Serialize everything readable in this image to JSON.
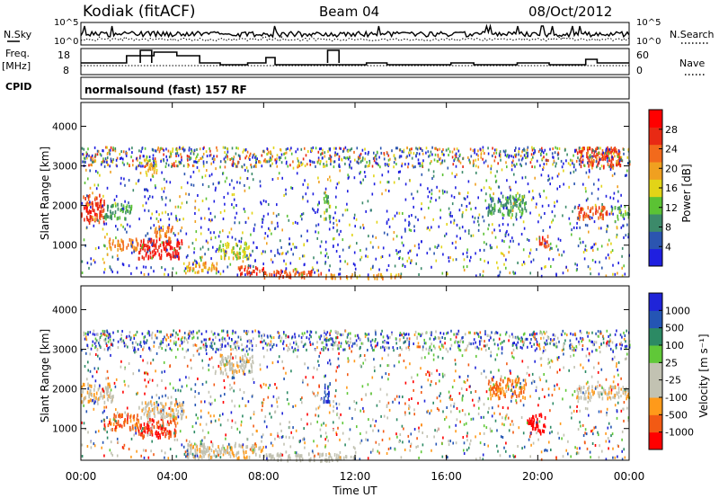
{
  "header": {
    "station": "Kodiak (fitACF)",
    "beam": "Beam 04",
    "date": "08/Oct/2012"
  },
  "sidepanel": {
    "nsky": "N.Sky",
    "freq_line1": "Freq.",
    "freq_line2": "[MHz]",
    "cpid": "CPID",
    "cpid_value": "normalsound (fast) 157 RF",
    "nsearch": "N.Search",
    "nave": "Nave",
    "noise_ticks": [
      "10^5",
      "10^0"
    ],
    "freq_ticks": [
      "18",
      "8"
    ],
    "nave_ticks": [
      "60",
      "0"
    ]
  },
  "colors": {
    "power": [
      "#1f1fe0",
      "#2b55b0",
      "#3c8a6a",
      "#5bc234",
      "#e2d417",
      "#f0a020",
      "#f26a1c",
      "#e82a14",
      "#ff0000"
    ],
    "velocity": [
      "#ff0000",
      "#f25a14",
      "#ff9a1a",
      "#c2c2b2",
      "#c2c2b2",
      "#60c838",
      "#2c8a64",
      "#2455b4",
      "#1f24d8"
    ]
  },
  "chart_data": [
    {
      "type": "heatmap",
      "name": "power",
      "ylabel": "Slant Range [km]",
      "yticks": [
        "4000",
        "3000",
        "2000",
        "1000"
      ],
      "ylim": [
        200,
        4600
      ],
      "xlim": [
        0,
        24
      ],
      "colorbar": {
        "label": "Power [dB]",
        "ticks": [
          "28",
          "24",
          "20",
          "16",
          "12",
          "8",
          "4"
        ],
        "range": [
          0,
          32
        ]
      },
      "regions": [
        {
          "t": [
            0.0,
            1.0
          ],
          "r": [
            1600,
            2300
          ],
          "level": 26
        },
        {
          "t": [
            1.0,
            2.2
          ],
          "r": [
            1700,
            2100
          ],
          "level": 10
        },
        {
          "t": [
            1.2,
            2.5
          ],
          "r": [
            900,
            1200
          ],
          "level": 22
        },
        {
          "t": [
            2.5,
            4.4
          ],
          "r": [
            700,
            1200
          ],
          "level": 28
        },
        {
          "t": [
            3.2,
            4.0
          ],
          "r": [
            1200,
            1500
          ],
          "level": 22
        },
        {
          "t": [
            2.8,
            3.3
          ],
          "r": [
            2800,
            3200
          ],
          "level": 18
        },
        {
          "t": [
            4.6,
            6.0
          ],
          "r": [
            350,
            600
          ],
          "level": 20
        },
        {
          "t": [
            6.0,
            7.4
          ],
          "r": [
            700,
            1100
          ],
          "level": 16
        },
        {
          "t": [
            6.8,
            8.0
          ],
          "r": [
            300,
            500
          ],
          "level": 26
        },
        {
          "t": [
            8.0,
            10.5
          ],
          "r": [
            220,
            400
          ],
          "level": 24
        },
        {
          "t": [
            10.5,
            14.0
          ],
          "r": [
            200,
            300
          ],
          "level": 20
        },
        {
          "t": [
            10.6,
            10.9
          ],
          "r": [
            1700,
            2300
          ],
          "level": 12
        },
        {
          "t": [
            17.8,
            19.5
          ],
          "r": [
            1800,
            2300
          ],
          "level": 10
        },
        {
          "t": [
            20.0,
            20.5
          ],
          "r": [
            1000,
            1300
          ],
          "level": 26
        },
        {
          "t": [
            21.7,
            23.2
          ],
          "r": [
            1700,
            2000
          ],
          "level": 24
        },
        {
          "t": [
            23.2,
            24.0
          ],
          "r": [
            1750,
            2000
          ],
          "level": 12
        },
        {
          "t": [
            21.7,
            23.6
          ],
          "r": [
            3000,
            3500
          ],
          "level": 26
        },
        {
          "t": [
            0.0,
            24.0
          ],
          "r": [
            3000,
            3500
          ],
          "level": 14
        },
        {
          "t": [
            0.0,
            24.0
          ],
          "r": [
            250,
            3500
          ],
          "level": 6
        }
      ]
    },
    {
      "type": "heatmap",
      "name": "velocity",
      "ylabel": "Slant Range [km]",
      "xlabel": "Time UT",
      "yticks": [
        "4000",
        "3000",
        "2000",
        "1000"
      ],
      "xticks": [
        "00:00",
        "04:00",
        "08:00",
        "12:00",
        "16:00",
        "20:00",
        "00:00"
      ],
      "xtick_values": [
        0,
        4,
        8,
        12,
        16,
        20,
        24
      ],
      "ylim": [
        200,
        4600
      ],
      "xlim": [
        0,
        24
      ],
      "colorbar": {
        "label": "Velocity [m s⁻¹]",
        "ticks": [
          "1000",
          "500",
          "100",
          "25",
          "-25",
          "-100",
          "-500",
          "-1000"
        ],
        "range": [
          -1000,
          1000
        ]
      },
      "regions": [
        {
          "t": [
            0.0,
            1.4
          ],
          "r": [
            1700,
            2200
          ],
          "level": 0
        },
        {
          "t": [
            1.0,
            2.5
          ],
          "r": [
            1000,
            1400
          ],
          "level": -300
        },
        {
          "t": [
            2.5,
            4.2
          ],
          "r": [
            800,
            1300
          ],
          "level": -450
        },
        {
          "t": [
            2.5,
            4.5
          ],
          "r": [
            1300,
            1700
          ],
          "level": 0
        },
        {
          "t": [
            4.6,
            8.0
          ],
          "r": [
            300,
            650
          ],
          "level": 0
        },
        {
          "t": [
            8.0,
            12.0
          ],
          "r": [
            220,
            400
          ],
          "level": 150
        },
        {
          "t": [
            10.6,
            10.9
          ],
          "r": [
            1700,
            2200
          ],
          "level": 800
        },
        {
          "t": [
            17.8,
            19.5
          ],
          "r": [
            1800,
            2300
          ],
          "level": -250
        },
        {
          "t": [
            19.5,
            20.3
          ],
          "r": [
            900,
            1400
          ],
          "level": -600
        },
        {
          "t": [
            21.7,
            24.0
          ],
          "r": [
            1800,
            2100
          ],
          "level": 0
        },
        {
          "t": [
            6.0,
            7.5
          ],
          "r": [
            2400,
            2900
          ],
          "level": 0
        },
        {
          "t": [
            0.0,
            24.0
          ],
          "r": [
            3000,
            3500
          ],
          "level": 600
        },
        {
          "t": [
            0.0,
            24.0
          ],
          "r": [
            250,
            3500
          ],
          "level": 200
        }
      ]
    }
  ]
}
